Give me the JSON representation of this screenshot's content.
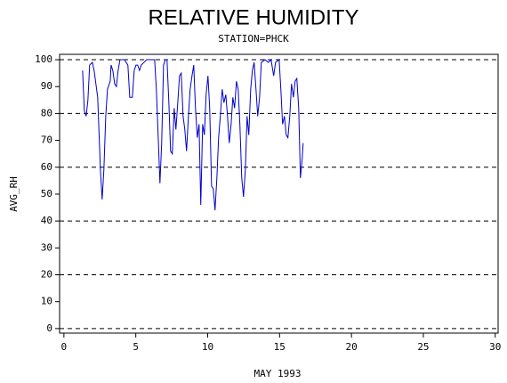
{
  "chart_data": {
    "type": "line",
    "title": "RELATIVE HUMIDITY",
    "subtitle": "STATION=PHCK",
    "xlabel": "MAY 1993",
    "ylabel": "AVG_RH",
    "xlim": [
      -0.3,
      30.2
    ],
    "ylim": [
      -1.7,
      102
    ],
    "xticks": [
      0,
      5,
      10,
      15,
      20,
      25,
      30
    ],
    "yticks": [
      0,
      10,
      20,
      30,
      40,
      50,
      60,
      70,
      80,
      90,
      100
    ],
    "grid_values": [
      0,
      20,
      40,
      60,
      80,
      100
    ],
    "series": [
      {
        "name": "AVG_RH",
        "color": "#0000cc",
        "x": [
          1.3,
          1.42,
          1.55,
          1.67,
          1.79,
          1.98,
          2.1,
          2.35,
          2.54,
          2.66,
          2.78,
          2.91,
          3.03,
          3.22,
          3.28,
          3.4,
          3.53,
          3.65,
          3.77,
          3.9,
          4.21,
          4.45,
          4.58,
          4.76,
          4.89,
          5.01,
          5.13,
          5.26,
          5.38,
          5.57,
          5.75,
          6.06,
          6.31,
          6.43,
          6.56,
          6.68,
          6.8,
          6.93,
          7.05,
          7.17,
          7.3,
          7.42,
          7.54,
          7.67,
          7.79,
          7.92,
          8.04,
          8.16,
          8.29,
          8.41,
          8.53,
          8.66,
          8.78,
          8.91,
          9.03,
          9.15,
          9.28,
          9.4,
          9.52,
          9.65,
          9.77,
          9.89,
          10.02,
          10.14,
          10.27,
          10.39,
          10.51,
          10.64,
          10.76,
          10.88,
          11.01,
          11.13,
          11.26,
          11.38,
          11.5,
          11.63,
          11.75,
          11.87,
          12.0,
          12.12,
          12.24,
          12.37,
          12.49,
          12.62,
          12.74,
          12.86,
          12.99,
          13.11,
          13.23,
          13.36,
          13.48,
          13.61,
          13.73,
          13.98,
          14.22,
          14.41,
          14.59,
          14.72,
          14.97,
          15.09,
          15.21,
          15.34,
          15.46,
          15.58,
          15.71,
          15.83,
          15.96,
          16.08,
          16.2,
          16.33,
          16.45,
          16.57,
          16.64
        ],
        "values": [
          96,
          81,
          79,
          85,
          98,
          99,
          96,
          86,
          59,
          48,
          59,
          79,
          89,
          92,
          98,
          96,
          91,
          90,
          96,
          100,
          100,
          98,
          86,
          86,
          96,
          98,
          98,
          96,
          98,
          99,
          100,
          100,
          100,
          89,
          71,
          54,
          69,
          98,
          100,
          100,
          84,
          66,
          65,
          82,
          74,
          84,
          94,
          95,
          79,
          74,
          66,
          79,
          89,
          94,
          98,
          82,
          71,
          76,
          46,
          76,
          72,
          87,
          94,
          82,
          53,
          52,
          44,
          56,
          71,
          79,
          89,
          84,
          87,
          79,
          69,
          76,
          86,
          82,
          92,
          89,
          76,
          56,
          49,
          59,
          79,
          72,
          89,
          96,
          99,
          89,
          79,
          86,
          99,
          100,
          99,
          100,
          94,
          99,
          100,
          89,
          76,
          79,
          72,
          71,
          79,
          91,
          86,
          92,
          93,
          82,
          56,
          63,
          69
        ]
      }
    ]
  }
}
